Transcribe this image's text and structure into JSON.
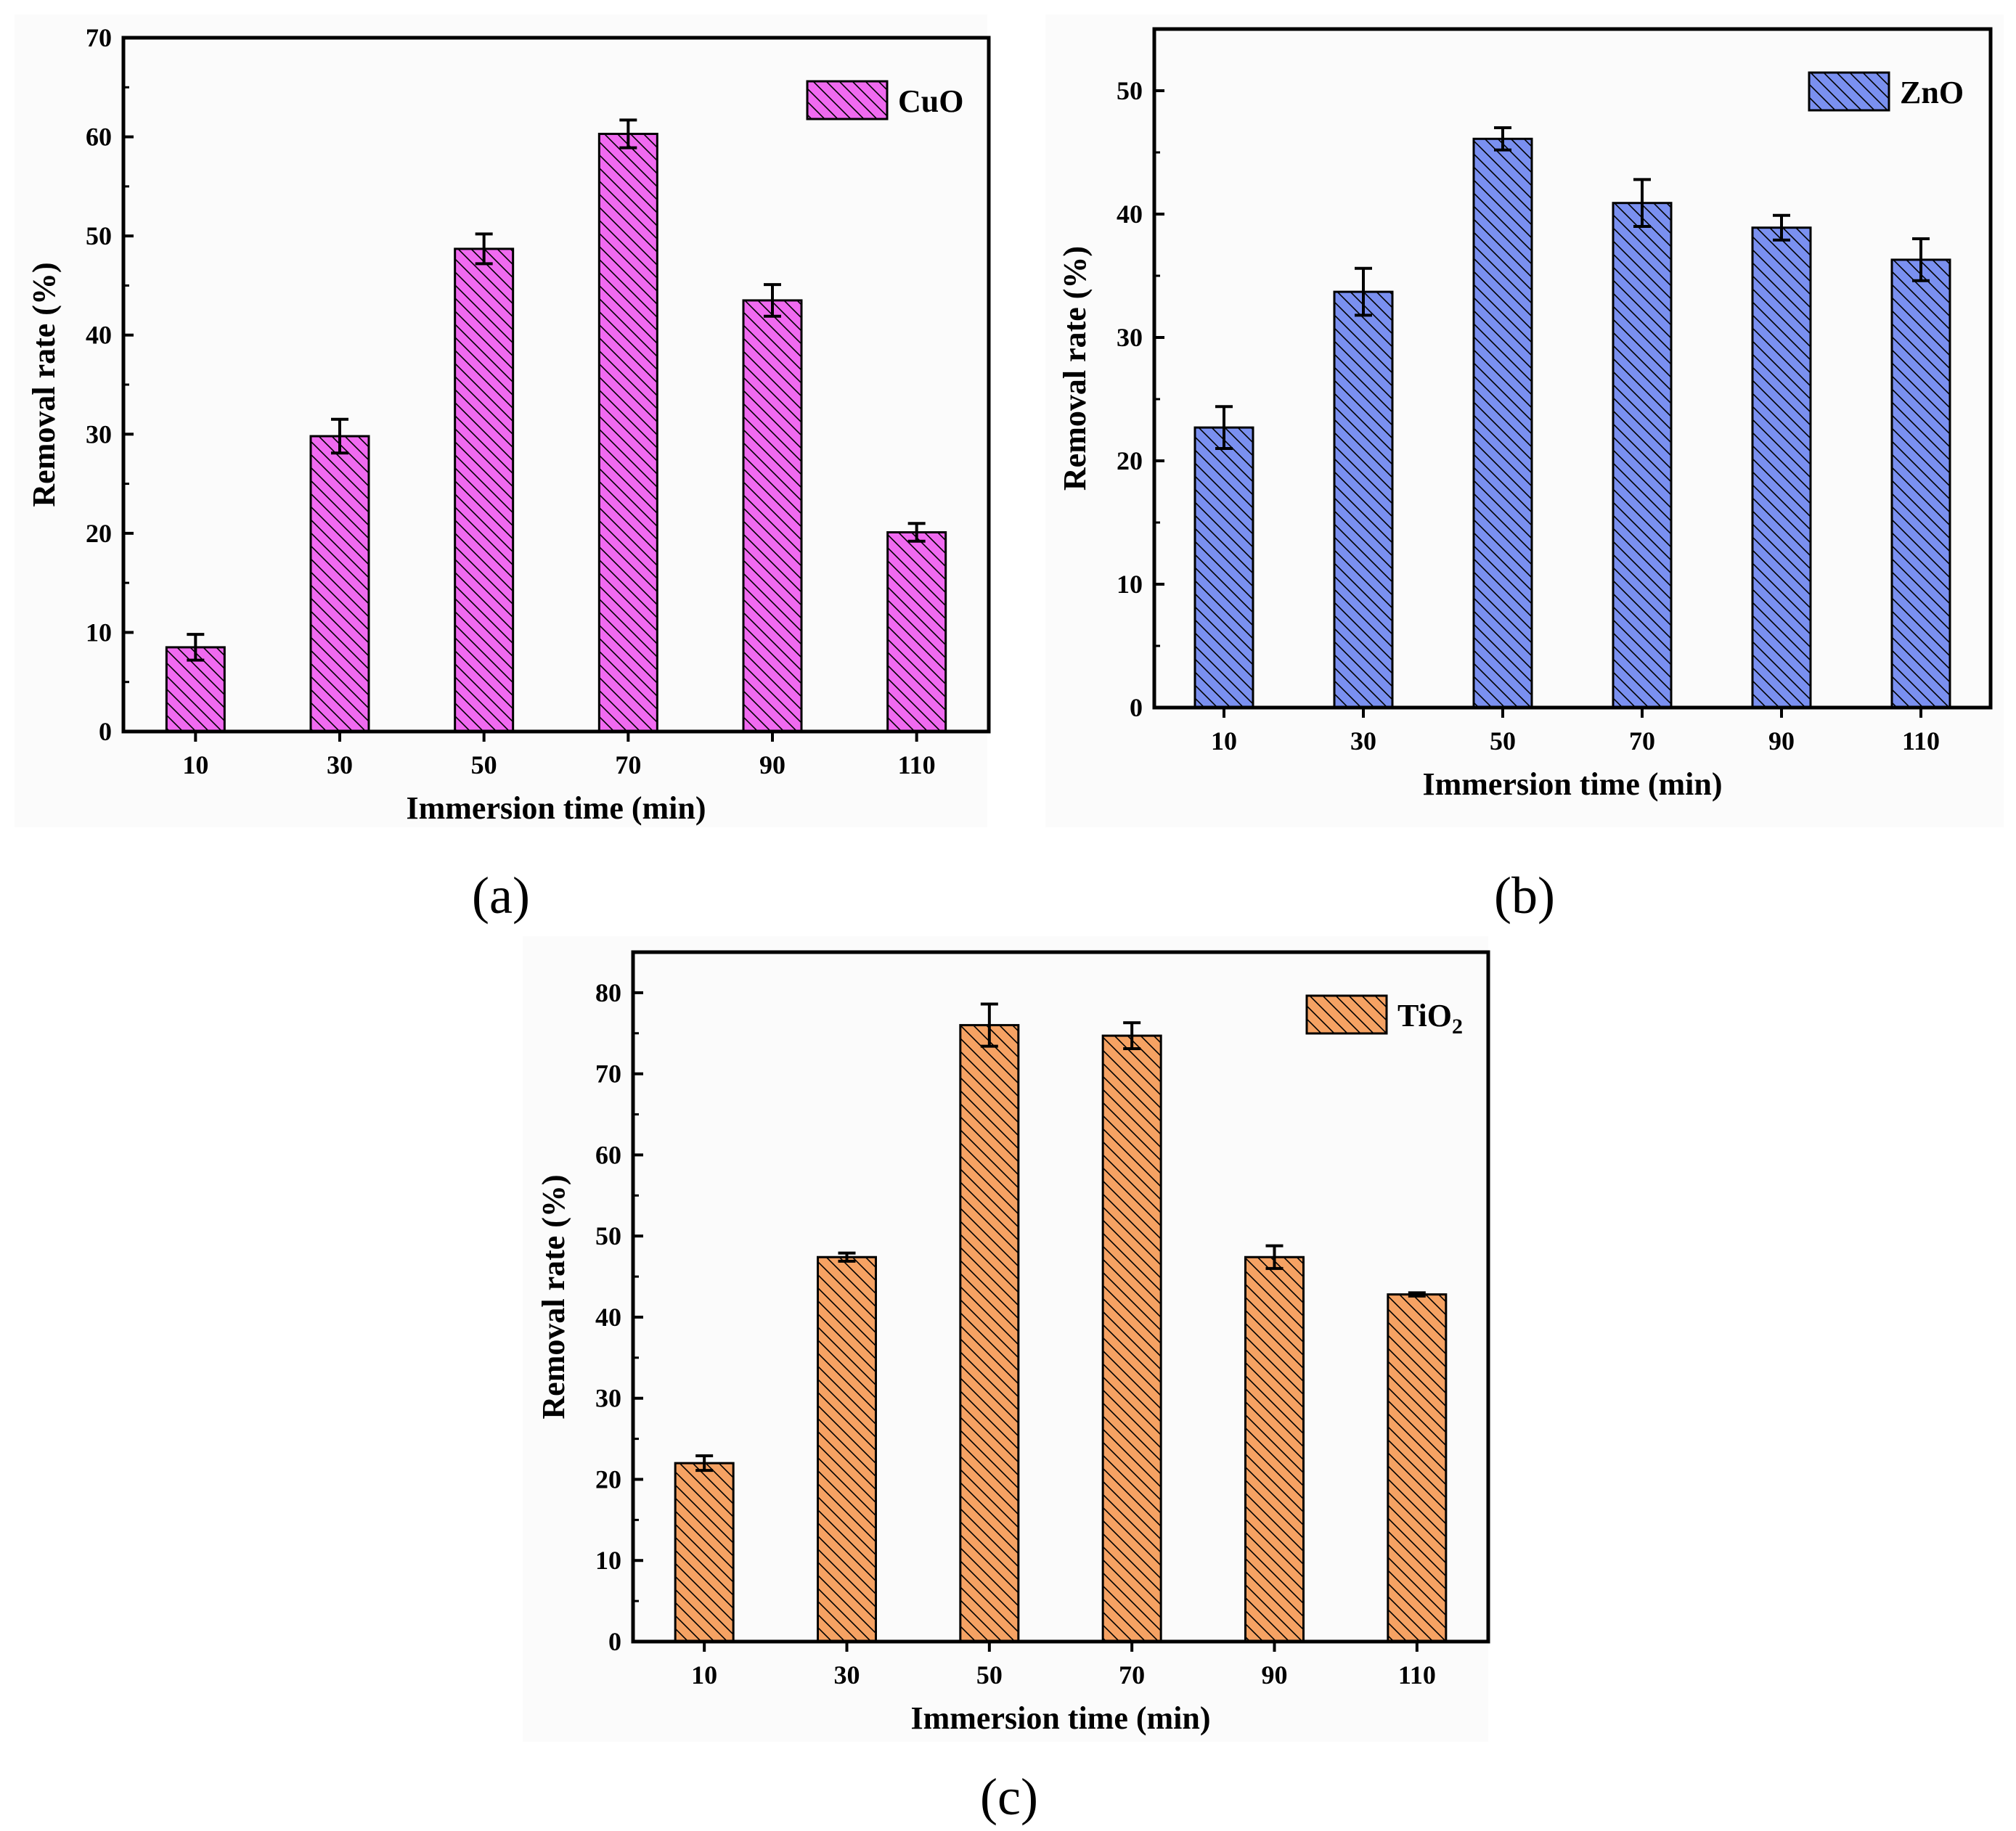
{
  "chart_data": [
    {
      "type": "bar",
      "panel_label": "(a)",
      "categories": [
        "10",
        "30",
        "50",
        "70",
        "90",
        "110"
      ],
      "series": [
        {
          "name": "CuO",
          "values": [
            8.5,
            29.8,
            48.7,
            60.3,
            43.5,
            20.1
          ],
          "errors": [
            1.3,
            1.7,
            1.5,
            1.4,
            1.6,
            0.9
          ],
          "color": "#f06af0",
          "hatch": "diagonal-backslash"
        }
      ],
      "legend": {
        "label_main": "CuO",
        "label_sub": "",
        "placement": "top-right"
      },
      "xlabel": "Immersion time (min)",
      "ylabel": "Removal rate (%)",
      "ylim": [
        0,
        70
      ],
      "yticks": [
        "0",
        "10",
        "20",
        "30",
        "40",
        "50",
        "60",
        "70"
      ],
      "grid": false
    },
    {
      "type": "bar",
      "panel_label": "(b)",
      "categories": [
        "10",
        "30",
        "50",
        "70",
        "90",
        "110"
      ],
      "series": [
        {
          "name": "ZnO",
          "values": [
            22.7,
            33.7,
            46.1,
            40.9,
            38.9,
            36.3
          ],
          "errors": [
            1.7,
            1.9,
            0.9,
            1.9,
            1.0,
            1.7
          ],
          "color": "#7a90f0",
          "hatch": "diagonal-backslash"
        }
      ],
      "legend": {
        "label_main": "ZnO",
        "label_sub": "",
        "placement": "top-right"
      },
      "xlabel": "Immersion time (min)",
      "ylabel": "Removal rate (%)",
      "ylim": [
        0,
        55
      ],
      "yticks": [
        "0",
        "10",
        "20",
        "30",
        "40",
        "50"
      ],
      "grid": false
    },
    {
      "type": "bar",
      "panel_label": "(c)",
      "categories": [
        "10",
        "30",
        "50",
        "70",
        "90",
        "110"
      ],
      "series": [
        {
          "name": "TiO2",
          "values": [
            22.0,
            47.4,
            76.0,
            74.7,
            47.4,
            42.8
          ],
          "errors": [
            0.9,
            0.5,
            2.6,
            1.6,
            1.4,
            0.2
          ],
          "color": "#f5a263",
          "hatch": "diagonal-backslash"
        }
      ],
      "legend": {
        "label_main": "TiO",
        "label_sub": "2",
        "placement": "top-right"
      },
      "xlabel": "Immersion time (min)",
      "ylabel": "Removal rate (%)",
      "ylim": [
        0,
        85
      ],
      "yticks": [
        "0",
        "10",
        "20",
        "30",
        "40",
        "50",
        "60",
        "70",
        "80"
      ],
      "grid": false
    }
  ]
}
